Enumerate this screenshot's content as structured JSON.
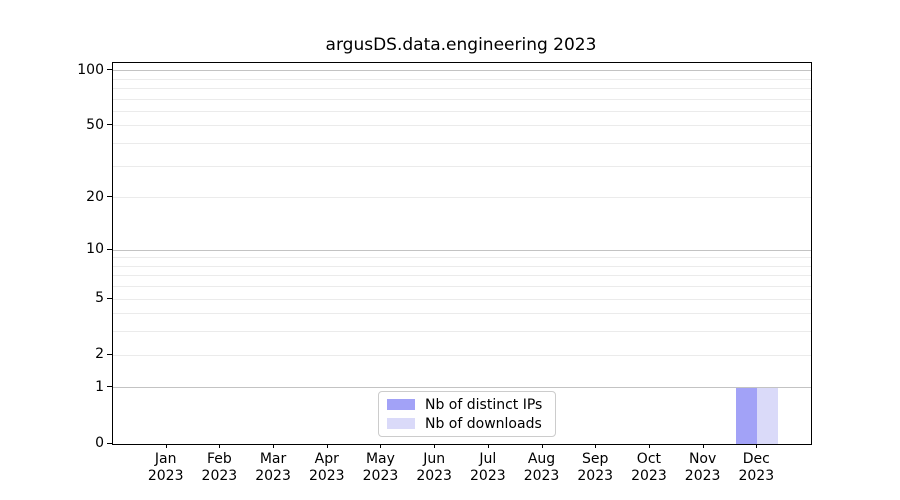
{
  "chart_data": {
    "type": "bar",
    "title": "argusDS.data.engineering 2023",
    "categories": [
      "Jan",
      "Feb",
      "Mar",
      "Apr",
      "May",
      "Jun",
      "Jul",
      "Aug",
      "Sep",
      "Oct",
      "Nov",
      "Dec"
    ],
    "year_label": "2023",
    "series": [
      {
        "name": "Nb of distinct IPs",
        "color": "#a2a2f7",
        "values": [
          0,
          0,
          0,
          0,
          0,
          0,
          0,
          0,
          0,
          0,
          0,
          1
        ]
      },
      {
        "name": "Nb of downloads",
        "color": "#dadaf9",
        "values": [
          0,
          0,
          0,
          0,
          0,
          0,
          0,
          0,
          0,
          0,
          0,
          1
        ]
      }
    ],
    "yscale": "log1p",
    "ylim": [
      0,
      110
    ],
    "yticks": [
      0,
      1,
      2,
      5,
      10,
      20,
      50,
      100
    ],
    "gridlines": {
      "major": [
        1,
        10,
        100
      ],
      "minor": [
        2,
        3,
        4,
        5,
        6,
        7,
        8,
        9,
        20,
        30,
        40,
        50,
        60,
        70,
        80,
        90
      ]
    },
    "legend_position": "lower center",
    "grid": true
  },
  "colors": {
    "major_grid": "#c3c3c3",
    "minor_grid": "#ebebeb",
    "spine": "#000000",
    "text": "#000000"
  }
}
